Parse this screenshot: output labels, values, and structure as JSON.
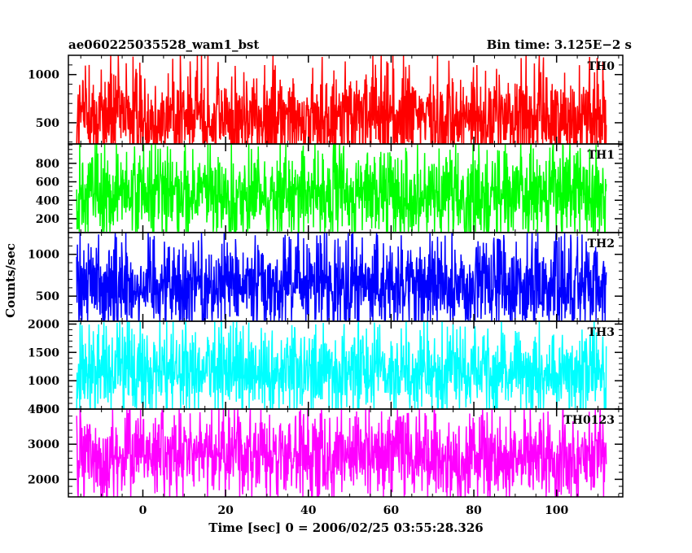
{
  "chart_data": {
    "type": "line",
    "title_left": "ae060225035528_wam1_bst",
    "title_right": "Bin time: 3.125E−2 s",
    "xlabel": "Time [sec] 0 = 2006/02/25 03:55:28.326",
    "ylabel": "Counts/sec",
    "xlim": [
      -18,
      116
    ],
    "data_x_range": [
      -16,
      112
    ],
    "x_ticks": [
      0,
      20,
      40,
      60,
      80,
      100
    ],
    "x_tick_labels": [
      "0",
      "20",
      "40",
      "60",
      "80",
      "100"
    ],
    "x_minor_step": 5,
    "grid": false,
    "panels": [
      {
        "label": "TH0",
        "color": "#ff0000",
        "ylim": [
          280,
          1200
        ],
        "y_ticks": [
          500,
          1000
        ],
        "y_tick_labels": [
          "500",
          "1000"
        ],
        "y_minor_step": 100,
        "series_envelope": {
          "low": 150,
          "typical_low": 300,
          "mean": 560,
          "typical_high": 820,
          "high": 1200
        }
      },
      {
        "label": "TH1",
        "color": "#00ff00",
        "ylim": [
          50,
          1010
        ],
        "y_ticks": [
          200,
          400,
          600,
          800
        ],
        "y_tick_labels": [
          "200",
          "400",
          "600",
          "800"
        ],
        "y_minor_step": 50,
        "series_envelope": {
          "low": 60,
          "typical_low": 200,
          "mean": 460,
          "typical_high": 730,
          "high": 1010
        }
      },
      {
        "label": "TH2",
        "color": "#0000ff",
        "ylim": [
          200,
          1260
        ],
        "y_ticks": [
          500,
          1000
        ],
        "y_tick_labels": [
          "500",
          "1000"
        ],
        "y_minor_step": 100,
        "series_envelope": {
          "low": 200,
          "typical_low": 340,
          "mean": 640,
          "typical_high": 950,
          "high": 1260
        }
      },
      {
        "label": "TH3",
        "color": "#00ffff",
        "ylim": [
          500,
          2050
        ],
        "y_ticks": [
          500,
          1000,
          1500,
          2000
        ],
        "y_tick_labels": [
          "500",
          "1000",
          "1500",
          "2000"
        ],
        "y_minor_step": 100,
        "series_envelope": {
          "low": 500,
          "typical_low": 780,
          "mean": 1180,
          "typical_high": 1600,
          "high": 2050
        }
      },
      {
        "label": "TH0123",
        "color": "#ff00ff",
        "ylim": [
          1500,
          4000
        ],
        "y_ticks": [
          2000,
          3000,
          4000
        ],
        "y_tick_labels": [
          "2000",
          "3000",
          "4000"
        ],
        "y_minor_step": 200,
        "series_envelope": {
          "low": 1500,
          "typical_low": 2050,
          "mean": 2680,
          "typical_high": 3400,
          "high": 4000
        }
      }
    ]
  }
}
